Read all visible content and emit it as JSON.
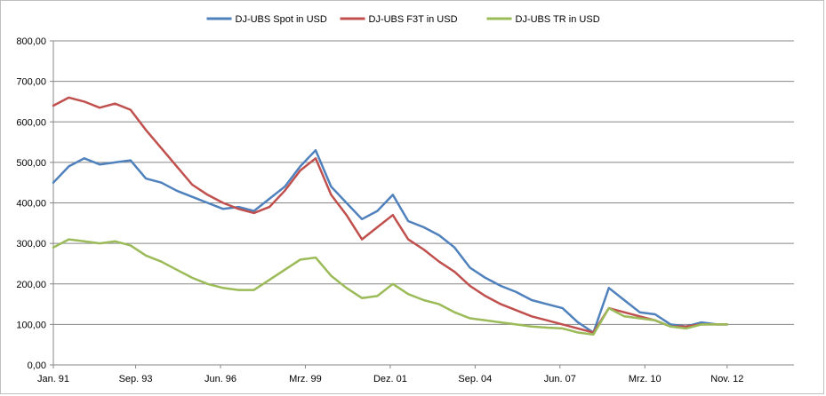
{
  "chart_data": {
    "type": "line",
    "title": "",
    "xlabel": "",
    "ylabel": "",
    "ylim": [
      0,
      800
    ],
    "y_ticks": [
      "0,00",
      "100,00",
      "200,00",
      "300,00",
      "400,00",
      "500,00",
      "600,00",
      "700,00",
      "800,00"
    ],
    "x_ticks": [
      "Jan. 91",
      "Sep. 93",
      "Jun. 96",
      "Mrz. 99",
      "Dez. 01",
      "Sep. 04",
      "Jun. 07",
      "Mrz. 10",
      "Nov. 12"
    ],
    "x_tick_dates": [
      "1991-01",
      "1993-09",
      "1996-06",
      "1999-03",
      "2001-12",
      "2004-09",
      "2007-06",
      "2010-03",
      "2012-11"
    ],
    "x_range": [
      "1991-01",
      "2015-01"
    ],
    "grid": true,
    "legend_position": "top",
    "x": [
      "1991-01",
      "1991-07",
      "1992-01",
      "1992-07",
      "1993-01",
      "1993-07",
      "1994-01",
      "1994-07",
      "1995-01",
      "1995-07",
      "1996-01",
      "1996-07",
      "1997-01",
      "1997-07",
      "1998-01",
      "1998-07",
      "1999-01",
      "1999-07",
      "2000-01",
      "2000-07",
      "2001-01",
      "2001-07",
      "2002-01",
      "2002-07",
      "2003-01",
      "2003-07",
      "2004-01",
      "2004-07",
      "2005-01",
      "2005-07",
      "2006-01",
      "2006-07",
      "2007-01",
      "2007-07",
      "2008-01",
      "2008-07",
      "2009-01",
      "2009-07",
      "2010-01",
      "2010-07",
      "2011-01",
      "2011-07",
      "2012-01",
      "2012-07",
      "2012-11"
    ],
    "series": [
      {
        "name": "DJ-UBS Spot in USD",
        "color": "#4f81bd",
        "values": [
          450,
          490,
          510,
          495,
          500,
          505,
          460,
          450,
          430,
          415,
          400,
          385,
          390,
          380,
          410,
          440,
          490,
          530,
          440,
          400,
          360,
          380,
          420,
          355,
          340,
          320,
          290,
          240,
          215,
          195,
          180,
          160,
          150,
          140,
          105,
          80,
          190,
          160,
          130,
          125,
          100,
          95,
          105,
          100,
          100
        ]
      },
      {
        "name": "DJ-UBS F3T in USD",
        "color": "#c0504d",
        "values": [
          640,
          660,
          650,
          635,
          645,
          630,
          580,
          535,
          490,
          445,
          420,
          400,
          385,
          375,
          390,
          430,
          480,
          510,
          420,
          370,
          310,
          340,
          370,
          310,
          285,
          255,
          230,
          195,
          170,
          150,
          135,
          120,
          110,
          100,
          90,
          80,
          140,
          130,
          120,
          110,
          95,
          95,
          100,
          100,
          100
        ]
      },
      {
        "name": "DJ-UBS TR in USD",
        "color": "#9bbb59",
        "values": [
          290,
          310,
          305,
          300,
          305,
          295,
          270,
          255,
          235,
          215,
          200,
          190,
          185,
          185,
          210,
          235,
          260,
          265,
          220,
          190,
          165,
          170,
          200,
          175,
          160,
          150,
          130,
          115,
          110,
          105,
          100,
          95,
          92,
          90,
          80,
          75,
          140,
          120,
          115,
          110,
          95,
          90,
          100,
          100,
          100
        ]
      }
    ]
  }
}
